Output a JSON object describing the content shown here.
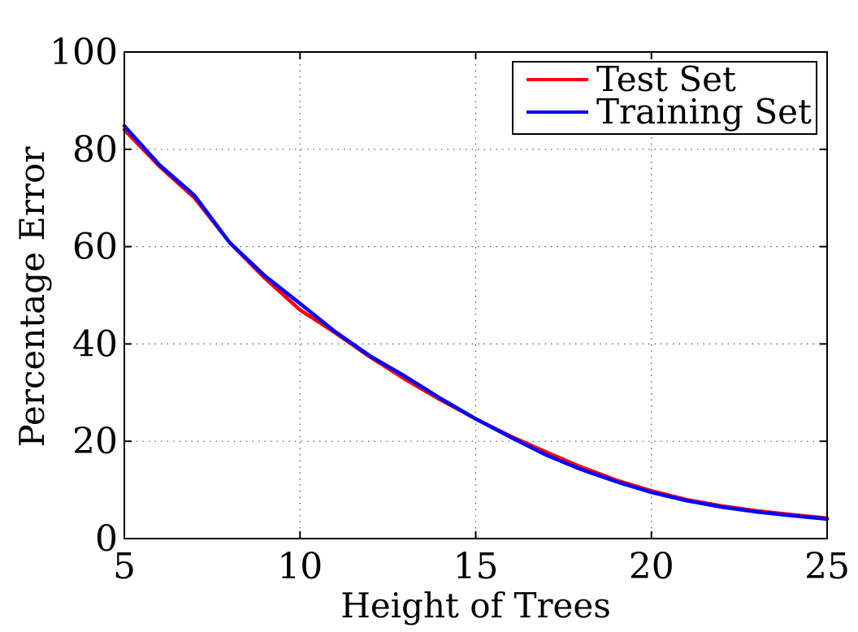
{
  "chart_data": {
    "type": "line",
    "title": "",
    "xlabel": "Height of Trees",
    "ylabel": "Percentage Error",
    "xlim": [
      5,
      25
    ],
    "ylim": [
      0,
      100
    ],
    "xticks": [
      5,
      10,
      15,
      20,
      25
    ],
    "yticks": [
      0,
      20,
      40,
      60,
      80,
      100
    ],
    "xtick_labels": [
      "5",
      "10",
      "15",
      "20",
      "25"
    ],
    "ytick_labels": [
      "0",
      "20",
      "40",
      "60",
      "80",
      "100"
    ],
    "grid": true,
    "legend_position": "top-right",
    "x": [
      5,
      6,
      7,
      8,
      9,
      10,
      11,
      12,
      13,
      14,
      15,
      16,
      17,
      18,
      19,
      20,
      21,
      22,
      23,
      24,
      25
    ],
    "series": [
      {
        "name": "Test Set",
        "color": "#ff0000",
        "values": [
          84.0,
          76.5,
          70.0,
          60.8,
          53.5,
          47.0,
          42.3,
          37.3,
          32.7,
          28.5,
          24.6,
          21.0,
          17.8,
          14.7,
          12.0,
          9.8,
          8.0,
          6.7,
          5.7,
          4.9,
          4.2
        ]
      },
      {
        "name": "Training Set",
        "color": "#0000ff",
        "values": [
          84.8,
          76.8,
          70.5,
          60.8,
          54.0,
          48.3,
          42.5,
          37.5,
          33.3,
          28.8,
          24.6,
          20.8,
          17.2,
          14.2,
          11.7,
          9.5,
          7.8,
          6.5,
          5.5,
          4.7,
          4.0
        ]
      }
    ]
  }
}
